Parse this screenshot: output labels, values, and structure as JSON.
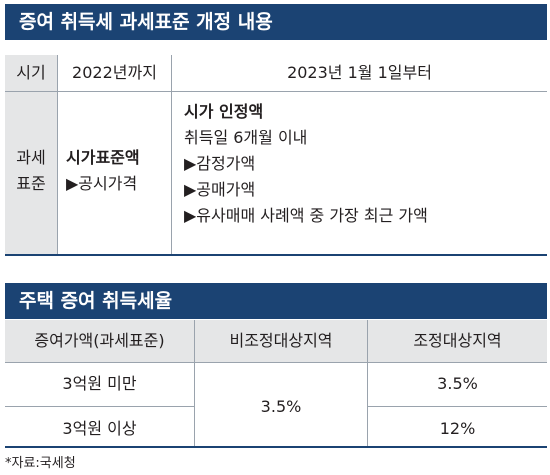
{
  "section1": {
    "title": "증여 취득세 과세표준 개정 내용",
    "period_header": "시기",
    "until_2022": "2022년까지",
    "from_2023": "2023년 1월 1일부터",
    "tax_base_label_line1": "과세",
    "tax_base_label_line2": "표준",
    "old_standard": "시가표준액",
    "old_detail": "▶공시가격",
    "new_standard": "시가 인정액",
    "new_detail_intro": "취득일 6개월 이내",
    "new_items": [
      "▶감정가액",
      "▶공매가액",
      "▶유사매매 사례액 중 가장 최근 가액"
    ]
  },
  "section2": {
    "title": "주택 증여 취득세율",
    "headers": [
      "증여가액(과세표준)",
      "비조정대상지역",
      "조정대상지역"
    ],
    "rows": [
      {
        "amount": "3억원 미만",
        "regulated": "3.5%"
      },
      {
        "amount": "3억원 이상",
        "regulated": "12%"
      }
    ],
    "non_regulated_merged": "3.5%"
  },
  "source": "*자료:국세청",
  "colors": {
    "header_bar": "#1b4373",
    "gray_cell": "#e5e6e7",
    "grid": "#9aa3ad"
  }
}
